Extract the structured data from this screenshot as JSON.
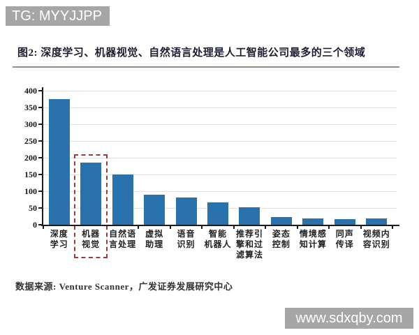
{
  "watermark_top": {
    "label": "TG: MYYJJPP"
  },
  "watermark_bottom": {
    "label": "www.sdxqby.com"
  },
  "figure": {
    "source": "数据来源: Venture Scanner，广发证券发展研究中心"
  },
  "chart_data": {
    "type": "bar",
    "title": "图2: 深度学习、机器视觉、自然语言处理是人工智能公司最多的三个领域",
    "categories": [
      "深度学习",
      "机器视觉",
      "自然语言处理",
      "虚拟助理",
      "语音识别",
      "智能机器人",
      "推荐引擎和过滤算法",
      "姿态控制",
      "情境感知计算",
      "同声传译",
      "视频内容识别"
    ],
    "category_lines": [
      [
        "深度",
        "学习"
      ],
      [
        "机器",
        "视觉"
      ],
      [
        "自然语",
        "言处理"
      ],
      [
        "虚拟",
        "助理"
      ],
      [
        "语音",
        "识别"
      ],
      [
        "智能",
        "机器人"
      ],
      [
        "推荐引",
        "擎和过",
        "滤算法"
      ],
      [
        "姿态",
        "控制"
      ],
      [
        "情境感",
        "知计算"
      ],
      [
        "同声",
        "传译"
      ],
      [
        "视频内",
        "容识别"
      ]
    ],
    "values": [
      375,
      186,
      151,
      89,
      82,
      66,
      53,
      23,
      18,
      16,
      19
    ],
    "xlabel": "",
    "ylabel": "",
    "ylim": [
      0,
      400
    ],
    "yticks": [
      0,
      50,
      100,
      150,
      200,
      250,
      300,
      350,
      400
    ],
    "grid": "horizontal",
    "legend": "none",
    "bar_color": "#2a72ad",
    "grid_color": "#e3e3e7",
    "axis_color": "#1c1c1c",
    "highlight": {
      "category": "机器视觉",
      "index": 1,
      "box_style": "dashed",
      "box_color": "#9c3a3c"
    }
  }
}
